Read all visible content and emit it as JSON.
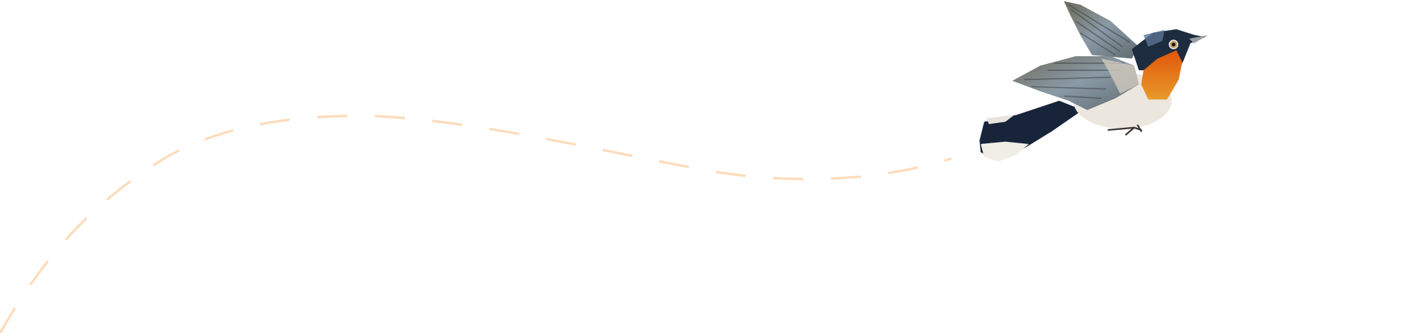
{
  "illustration": {
    "subject": "bird-in-flight",
    "colors": {
      "path_dash": "#fcdcbc",
      "throat": "#e0650f",
      "head": "#1e2c40",
      "wing": "#7d8a92",
      "belly": "#ece7de",
      "tail": "#17243a"
    }
  }
}
